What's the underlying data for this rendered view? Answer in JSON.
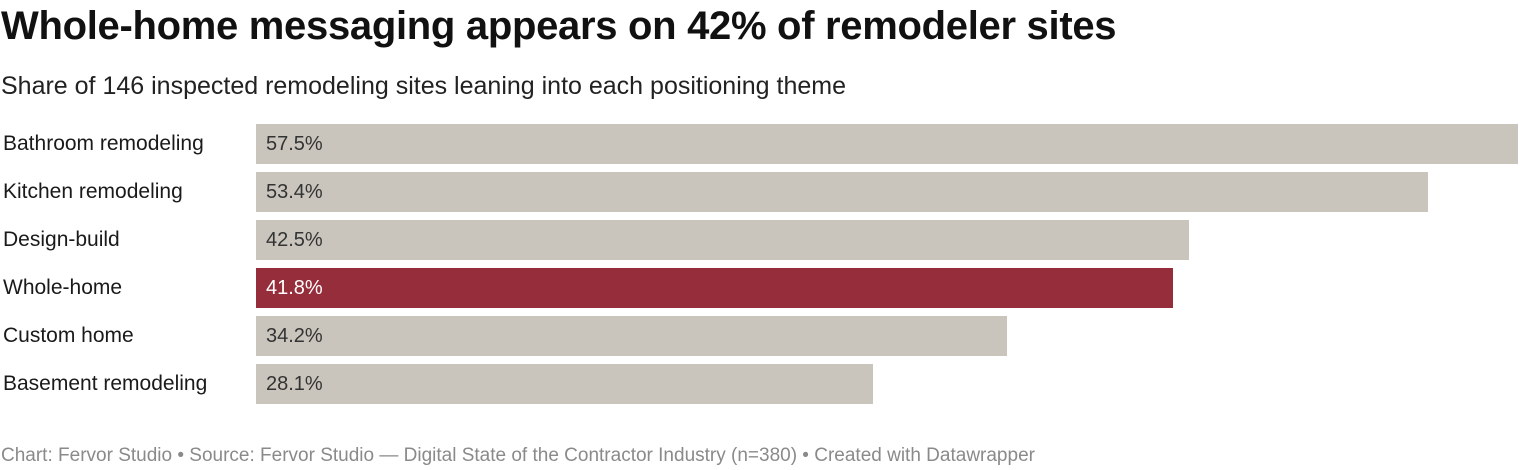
{
  "chart_data": {
    "type": "bar",
    "orientation": "horizontal",
    "title": "Whole-home messaging appears on 42% of remodeler sites",
    "subtitle": "Share of 146 inspected remodeling sites leaning into each positioning theme",
    "categories": [
      "Bathroom remodeling",
      "Kitchen remodeling",
      "Design-build",
      "Whole-home",
      "Custom home",
      "Basement remodeling"
    ],
    "values": [
      57.5,
      53.4,
      42.5,
      41.8,
      34.2,
      28.1
    ],
    "value_labels": [
      "57.5%",
      "53.4%",
      "42.5%",
      "41.8%",
      "34.2%",
      "28.1%"
    ],
    "highlight": "Whole-home",
    "colors": {
      "default": "#c9c5bd",
      "highlight": "#962d3b"
    },
    "xlim": [
      0,
      57.5
    ],
    "grid": false,
    "legend": "none"
  },
  "footer": {
    "text": "Chart: Fervor Studio • Source: Fervor Studio — Digital State of the Contractor Industry (n=380) • Created with Datawrapper"
  }
}
